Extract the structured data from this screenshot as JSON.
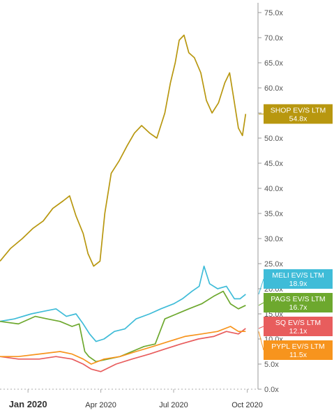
{
  "chart_data": {
    "type": "line",
    "title": "",
    "xlabel": "",
    "ylabel": "",
    "ylim": [
      0,
      75
    ],
    "y_ticks": [
      "0.0x",
      "5.0x",
      "10.0x",
      "15.0x",
      "20.0x",
      "25.0x",
      "30.0x",
      "35.0x",
      "40.0x",
      "45.0x",
      "50.0x",
      "55.0x",
      "60.0x",
      "65.0x",
      "70.0x",
      "75.0x"
    ],
    "x_ticks": [
      "Jan 2020",
      "Apr 2020",
      "Jul 2020",
      "Oct 2020"
    ],
    "x_tick_values": [
      "2020-01-01",
      "2020-04-01",
      "2020-07-01",
      "2020-10-01"
    ],
    "xlim": [
      "2019-11-27",
      "2020-10-04"
    ],
    "grid": false,
    "series": [
      {
        "name": "SHOP EV/S LTM",
        "label": "SHOP EV/S LTM",
        "value_label": "54.8x",
        "color": "#b8970f",
        "x": [
          "2019-11-27",
          "2019-12-10",
          "2019-12-25",
          "2020-01-07",
          "2020-01-20",
          "2020-02-01",
          "2020-02-14",
          "2020-02-22",
          "2020-03-01",
          "2020-03-10",
          "2020-03-16",
          "2020-03-23",
          "2020-03-31",
          "2020-04-06",
          "2020-04-14",
          "2020-04-24",
          "2020-05-04",
          "2020-05-13",
          "2020-05-22",
          "2020-06-01",
          "2020-06-10",
          "2020-06-20",
          "2020-06-27",
          "2020-07-03",
          "2020-07-08",
          "2020-07-14",
          "2020-07-20",
          "2020-07-27",
          "2020-08-04",
          "2020-08-11",
          "2020-08-18",
          "2020-08-26",
          "2020-09-03",
          "2020-09-09",
          "2020-09-14",
          "2020-09-20",
          "2020-09-25",
          "2020-09-29"
        ],
        "y": [
          25.5,
          28.0,
          30.0,
          32.0,
          33.5,
          36.0,
          37.5,
          38.5,
          34.5,
          31.0,
          27.0,
          24.5,
          25.5,
          35.0,
          43.0,
          45.5,
          48.5,
          51.0,
          52.5,
          51.0,
          50.0,
          55.0,
          61.0,
          65.0,
          69.5,
          70.5,
          67.0,
          66.0,
          63.0,
          57.5,
          55.0,
          57.0,
          61.0,
          63.0,
          58.0,
          52.0,
          50.5,
          54.8
        ]
      },
      {
        "name": "MELI EV/S LTM",
        "label": "MELI EV/S LTM",
        "value_label": "18.9x",
        "color": "#3fbcd8",
        "x": [
          "2019-11-27",
          "2019-12-15",
          "2020-01-05",
          "2020-01-20",
          "2020-02-05",
          "2020-02-18",
          "2020-03-01",
          "2020-03-10",
          "2020-03-18",
          "2020-03-26",
          "2020-04-05",
          "2020-04-18",
          "2020-05-01",
          "2020-05-15",
          "2020-06-01",
          "2020-06-15",
          "2020-07-01",
          "2020-07-12",
          "2020-07-24",
          "2020-08-02",
          "2020-08-08",
          "2020-08-15",
          "2020-08-25",
          "2020-09-05",
          "2020-09-15",
          "2020-09-22",
          "2020-09-29"
        ],
        "y": [
          13.5,
          14.0,
          15.0,
          15.5,
          16.0,
          14.5,
          15.0,
          13.0,
          11.0,
          9.5,
          10.0,
          11.5,
          12.0,
          14.0,
          15.0,
          16.0,
          17.0,
          18.0,
          19.5,
          20.5,
          24.5,
          21.0,
          20.0,
          20.5,
          18.0,
          18.0,
          18.9
        ]
      },
      {
        "name": "PAGS EV/S LTM",
        "label": "PAGS EV/S LTM",
        "value_label": "16.7x",
        "color": "#6da82e",
        "x": [
          "2019-11-27",
          "2019-12-20",
          "2020-01-10",
          "2020-01-25",
          "2020-02-10",
          "2020-02-25",
          "2020-03-05",
          "2020-03-12",
          "2020-03-17",
          "2020-03-26",
          "2020-04-10",
          "2020-04-25",
          "2020-05-10",
          "2020-05-25",
          "2020-06-08",
          "2020-06-20",
          "2020-07-05",
          "2020-07-20",
          "2020-08-05",
          "2020-08-20",
          "2020-09-01",
          "2020-09-10",
          "2020-09-20",
          "2020-09-29"
        ],
        "y": [
          13.5,
          13.0,
          14.5,
          14.0,
          13.5,
          12.5,
          13.0,
          7.5,
          6.5,
          5.5,
          6.0,
          6.5,
          7.5,
          8.5,
          9.0,
          14.0,
          15.0,
          16.0,
          17.0,
          18.5,
          19.5,
          17.0,
          16.0,
          16.7
        ]
      },
      {
        "name": "SQ EV/S LTM",
        "label": "SQ EV/S LTM",
        "value_label": "12.1x",
        "color": "#e85d5d",
        "x": [
          "2019-11-27",
          "2019-12-20",
          "2020-01-15",
          "2020-02-05",
          "2020-02-25",
          "2020-03-10",
          "2020-03-20",
          "2020-04-01",
          "2020-04-20",
          "2020-05-10",
          "2020-06-01",
          "2020-06-20",
          "2020-07-10",
          "2020-08-01",
          "2020-08-20",
          "2020-09-05",
          "2020-09-20",
          "2020-09-29"
        ],
        "y": [
          6.5,
          6.0,
          6.0,
          6.5,
          6.0,
          5.0,
          4.0,
          3.5,
          5.0,
          6.0,
          7.0,
          8.0,
          9.0,
          10.0,
          10.5,
          11.5,
          11.0,
          12.1
        ]
      },
      {
        "name": "PYPL EV/S LTM",
        "label": "PYPL EV/S LTM",
        "value_label": "11.5x",
        "color": "#f7941d",
        "x": [
          "2019-11-27",
          "2019-12-20",
          "2020-01-15",
          "2020-02-10",
          "2020-02-25",
          "2020-03-10",
          "2020-03-20",
          "2020-04-05",
          "2020-04-25",
          "2020-05-15",
          "2020-06-05",
          "2020-06-25",
          "2020-07-15",
          "2020-08-05",
          "2020-08-25",
          "2020-09-10",
          "2020-09-20",
          "2020-09-29"
        ],
        "y": [
          6.5,
          6.5,
          7.0,
          7.5,
          7.0,
          6.0,
          5.0,
          6.0,
          6.5,
          7.5,
          8.5,
          9.5,
          10.5,
          11.0,
          11.5,
          12.5,
          11.5,
          11.5
        ]
      }
    ]
  }
}
